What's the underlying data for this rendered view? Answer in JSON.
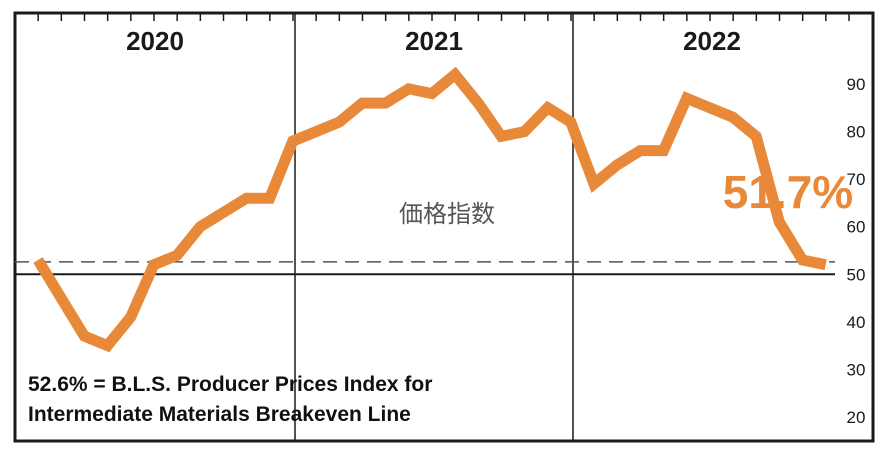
{
  "chart_data": {
    "type": "line",
    "title": "",
    "center_label": "価格指数",
    "years": [
      "2020",
      "2021",
      "2022"
    ],
    "ylim": [
      10,
      100
    ],
    "yticks": [
      "20",
      "30",
      "40",
      "50",
      "60",
      "70",
      "80",
      "90"
    ],
    "series": [
      {
        "color": "#e8893a",
        "values": [
          53,
          45,
          37,
          35,
          41,
          52,
          54,
          60,
          63,
          66,
          66,
          78,
          80,
          82,
          86,
          86,
          89,
          88,
          92,
          86,
          79,
          80,
          85,
          82,
          69,
          73,
          76,
          76,
          87,
          85,
          83,
          79,
          61,
          53,
          52
        ]
      }
    ],
    "breakeven": {
      "value": 52.6
    },
    "callout": "51.7%",
    "note": [
      "52.6% = B.L.S. Producer Prices Index for",
      "Intermediate Materials Breakeven Line"
    ]
  }
}
